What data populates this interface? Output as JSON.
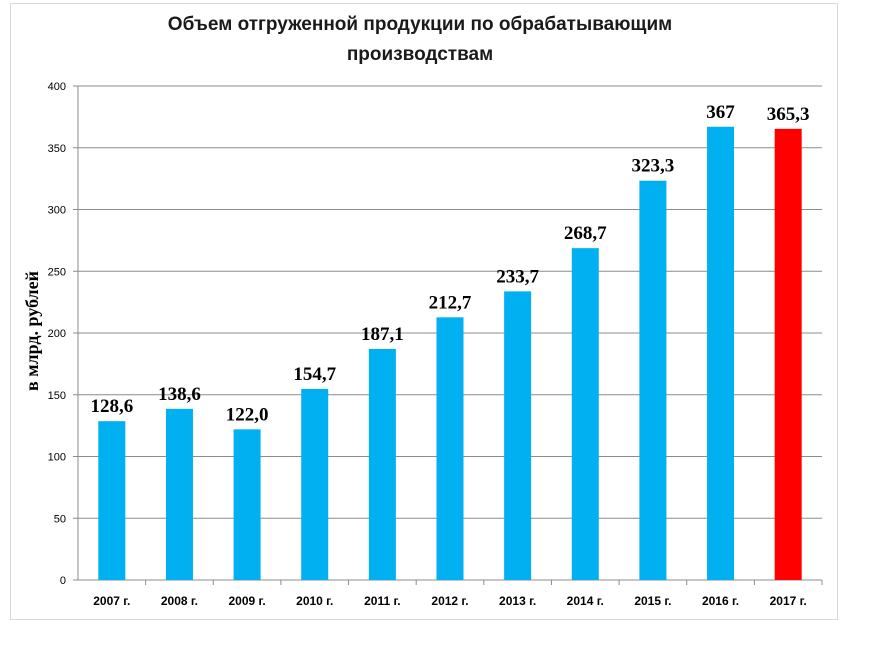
{
  "chart_data": {
    "type": "bar",
    "title": "Объем отгруженной продукции по обрабатывающим производствам",
    "title_lines": [
      "Объем отгруженной продукции по обрабатывающим",
      "производствам"
    ],
    "ylabel": "в млрд. рублей",
    "xlabel": "",
    "ylim": [
      0,
      400
    ],
    "y_ticks": [
      0,
      50,
      100,
      150,
      200,
      250,
      300,
      350,
      400
    ],
    "grid": true,
    "legend": "none",
    "categories": [
      "2007 г.",
      "2008 г.",
      "2009 г.",
      "2010 г.",
      "2011 г.",
      "2012 г.",
      "2013 г.",
      "2014 г.",
      "2015 г.",
      "2016 г.",
      "2017 г."
    ],
    "values": [
      128.6,
      138.6,
      122.0,
      154.7,
      187.1,
      212.7,
      233.7,
      268.7,
      323.3,
      367,
      365.3
    ],
    "data_labels": [
      "128,6",
      "138,6",
      "122,0",
      "154,7",
      "187,1",
      "212,7",
      "233,7",
      "268,7",
      "323,3",
      "367",
      "365,3"
    ],
    "colors": {
      "default": "#00b0f0",
      "highlight": "#ff0000",
      "grid": "#8c8c8c",
      "axis": "#8c8c8c"
    },
    "highlight_index": 10
  }
}
